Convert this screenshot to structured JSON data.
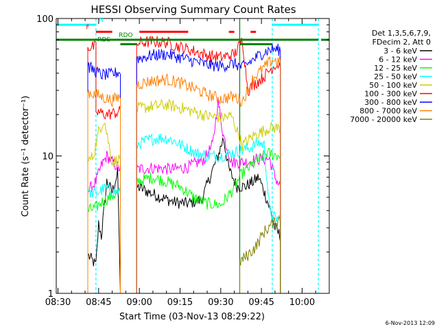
{
  "chart_data": {
    "type": "line",
    "title": "HESSI Observing Summary Count Rates",
    "xlabel": "Start Time (03-Nov-13 08:29:22)",
    "ylabel": "Count Rate (s⁻¹ detector⁻¹)",
    "yscale": "log",
    "ylim": [
      1,
      100
    ],
    "xlim": [
      "08:29:22",
      "10:10:00"
    ],
    "x_ticks": [
      "08:30",
      "08:45",
      "09:00",
      "09:15",
      "09:30",
      "09:45",
      "10:00"
    ],
    "y_ticks": [
      "1",
      "10",
      "100"
    ],
    "footer_date": "6-Nov-2013 12:09",
    "legend": {
      "placement": "right",
      "header": [
        "Det 1,3,5,6,7,9,",
        "FDecim 2, Att 0"
      ],
      "entries": [
        {
          "label": "3 - 6 keV",
          "color": "#000000"
        },
        {
          "label": "6 - 12 keV",
          "color": "#ff00ff"
        },
        {
          "label": "12 - 25 keV",
          "color": "#00ff00"
        },
        {
          "label": "25 - 50 keV",
          "color": "#00ffff"
        },
        {
          "label": "50 - 100 keV",
          "color": "#cccc00"
        },
        {
          "label": "100 - 300 keV",
          "color": "#ff0000"
        },
        {
          "label": "300 - 800 keV",
          "color": "#0000ff"
        },
        {
          "label": "800 - 7000 keV",
          "color": "#ff8000"
        },
        {
          "label": "7000 - 20000 keV",
          "color": "#808000"
        }
      ]
    },
    "series": [
      {
        "name": "3 - 6 keV",
        "color": "#000000",
        "points": [
          [
            "08:41",
            0
          ],
          [
            "08:41",
            1.9
          ],
          [
            "08:44",
            1.6
          ],
          [
            "08:45",
            3.2
          ],
          [
            "08:46",
            2.6
          ],
          [
            "08:48",
            6.5
          ],
          [
            "08:50",
            5.5
          ],
          [
            "08:52",
            7.5
          ],
          [
            "08:53",
            0
          ],
          [
            "08:59",
            0
          ],
          [
            "08:59",
            6
          ],
          [
            "09:03",
            5.5
          ],
          [
            "09:08",
            5
          ],
          [
            "09:13",
            4.6
          ],
          [
            "09:18",
            4.5
          ],
          [
            "09:23",
            4.8
          ],
          [
            "09:26",
            7
          ],
          [
            "09:29",
            10
          ],
          [
            "09:31",
            13.5
          ],
          [
            "09:33",
            8
          ],
          [
            "09:36",
            6
          ],
          [
            "09:39",
            6
          ],
          [
            "09:42",
            6.5
          ],
          [
            "09:44",
            7
          ],
          [
            "09:46",
            5.5
          ],
          [
            "09:48",
            4.2
          ],
          [
            "09:50",
            3
          ],
          [
            "09:52",
            2.6
          ],
          [
            "09:52",
            0
          ]
        ]
      },
      {
        "name": "6 - 12 keV",
        "color": "#ff00ff",
        "points": [
          [
            "08:41",
            0
          ],
          [
            "08:41",
            5.5
          ],
          [
            "08:44",
            6.5
          ],
          [
            "08:46",
            8.5
          ],
          [
            "08:48",
            10
          ],
          [
            "08:50",
            9
          ],
          [
            "08:53",
            8
          ],
          [
            "08:53",
            0
          ],
          [
            "08:59",
            0
          ],
          [
            "08:59",
            8
          ],
          [
            "09:05",
            8.2
          ],
          [
            "09:12",
            8
          ],
          [
            "09:18",
            8.3
          ],
          [
            "09:24",
            9.5
          ],
          [
            "09:27",
            12
          ],
          [
            "09:29",
            25
          ],
          [
            "09:31",
            14
          ],
          [
            "09:34",
            9
          ],
          [
            "09:39",
            9
          ],
          [
            "09:44",
            9.5
          ],
          [
            "09:48",
            9.5
          ],
          [
            "09:50",
            7
          ],
          [
            "09:52",
            6
          ],
          [
            "09:52",
            0
          ]
        ]
      },
      {
        "name": "12 - 25 keV",
        "color": "#00ff00",
        "points": [
          [
            "08:41",
            0
          ],
          [
            "08:41",
            4
          ],
          [
            "08:44",
            4.2
          ],
          [
            "08:46",
            4.6
          ],
          [
            "08:49",
            5
          ],
          [
            "08:53",
            5.5
          ],
          [
            "08:53",
            0
          ],
          [
            "08:59",
            0
          ],
          [
            "08:59",
            6.5
          ],
          [
            "09:05",
            7
          ],
          [
            "09:10",
            6.5
          ],
          [
            "09:15",
            6
          ],
          [
            "09:20",
            5
          ],
          [
            "09:25",
            4.5
          ],
          [
            "09:30",
            4.4
          ],
          [
            "09:34",
            5.5
          ],
          [
            "09:38",
            7.5
          ],
          [
            "09:43",
            9
          ],
          [
            "09:47",
            10.5
          ],
          [
            "09:52",
            10
          ],
          [
            "09:52",
            0
          ]
        ]
      },
      {
        "name": "25 - 50 keV",
        "color": "#00ffff",
        "points": [
          [
            "08:41",
            0
          ],
          [
            "08:41",
            5.5
          ],
          [
            "08:44",
            5.3
          ],
          [
            "08:47",
            5.8
          ],
          [
            "08:50",
            5.5
          ],
          [
            "08:53",
            5.5
          ],
          [
            "08:53",
            0
          ],
          [
            "08:59",
            0
          ],
          [
            "08:59",
            12
          ],
          [
            "09:03",
            13
          ],
          [
            "09:07",
            13.5
          ],
          [
            "09:10",
            13.5
          ],
          [
            "09:13",
            12.8
          ],
          [
            "09:17",
            11.5
          ],
          [
            "09:21",
            10.5
          ],
          [
            "09:25",
            10
          ],
          [
            "09:30",
            10
          ],
          [
            "09:34",
            10.5
          ],
          [
            "09:38",
            11
          ],
          [
            "09:41",
            11.5
          ],
          [
            "09:44",
            12.5
          ],
          [
            "09:46",
            12
          ],
          [
            "09:48",
            4
          ],
          [
            "09:50",
            3.5
          ],
          [
            "09:52",
            3.5
          ],
          [
            "09:52",
            0
          ]
        ]
      },
      {
        "name": "50 - 100 keV",
        "color": "#cccc00",
        "points": [
          [
            "08:41",
            0
          ],
          [
            "08:41",
            9
          ],
          [
            "08:43",
            10
          ],
          [
            "08:45",
            15
          ],
          [
            "08:47",
            18.5
          ],
          [
            "08:50",
            9
          ],
          [
            "08:53",
            9.5
          ],
          [
            "08:53",
            0
          ],
          [
            "08:59",
            0
          ],
          [
            "08:59",
            22
          ],
          [
            "09:05",
            23
          ],
          [
            "09:10",
            23.5
          ],
          [
            "09:15",
            22.5
          ],
          [
            "09:20",
            21
          ],
          [
            "09:25",
            19.5
          ],
          [
            "09:30",
            19
          ],
          [
            "09:34",
            19.5
          ],
          [
            "09:38",
            12
          ],
          [
            "09:42",
            14
          ],
          [
            "09:45",
            15
          ],
          [
            "09:48",
            16
          ],
          [
            "09:52",
            16
          ],
          [
            "09:52",
            0
          ]
        ]
      },
      {
        "name": "100 - 300 keV",
        "color": "#ff0000",
        "points": [
          [
            "08:41",
            0
          ],
          [
            "08:41",
            62
          ],
          [
            "08:44",
            62
          ],
          [
            "08:44",
            21
          ],
          [
            "08:48",
            20
          ],
          [
            "08:53",
            21
          ],
          [
            "08:53",
            0
          ],
          [
            "08:59",
            0
          ],
          [
            "08:59",
            66
          ],
          [
            "09:05",
            68
          ],
          [
            "09:10",
            67
          ],
          [
            "09:15",
            62
          ],
          [
            "09:20",
            58
          ],
          [
            "09:25",
            54
          ],
          [
            "09:30",
            52
          ],
          [
            "09:35",
            55
          ],
          [
            "09:38",
            70
          ],
          [
            "09:40",
            30
          ],
          [
            "09:43",
            34
          ],
          [
            "09:46",
            38
          ],
          [
            "09:48",
            42
          ],
          [
            "09:50",
            46
          ],
          [
            "09:52",
            46
          ],
          [
            "09:52",
            0
          ]
        ]
      },
      {
        "name": "300 - 800 keV",
        "color": "#0000ff",
        "points": [
          [
            "08:41",
            0
          ],
          [
            "08:41",
            45
          ],
          [
            "08:44",
            41
          ],
          [
            "08:46",
            39
          ],
          [
            "08:49",
            39
          ],
          [
            "08:53",
            41
          ],
          [
            "08:53",
            0
          ],
          [
            "08:59",
            0
          ],
          [
            "08:59",
            51
          ],
          [
            "09:05",
            54
          ],
          [
            "09:10",
            55
          ],
          [
            "09:15",
            52
          ],
          [
            "09:20",
            49
          ],
          [
            "09:25",
            46
          ],
          [
            "09:30",
            45
          ],
          [
            "09:35",
            47
          ],
          [
            "09:38",
            44
          ],
          [
            "09:43",
            52
          ],
          [
            "09:46",
            57
          ],
          [
            "09:49",
            60
          ],
          [
            "09:52",
            59
          ],
          [
            "09:52",
            0
          ]
        ]
      },
      {
        "name": "800 - 7000 keV",
        "color": "#ff8000",
        "points": [
          [
            "08:41",
            0
          ],
          [
            "08:41",
            29
          ],
          [
            "08:44",
            28
          ],
          [
            "08:47",
            26.5
          ],
          [
            "08:50",
            25.5
          ],
          [
            "08:53",
            27
          ],
          [
            "08:53",
            0
          ],
          [
            "08:59",
            0
          ],
          [
            "08:59",
            33
          ],
          [
            "09:04",
            35
          ],
          [
            "09:10",
            36
          ],
          [
            "09:15",
            34
          ],
          [
            "09:20",
            31
          ],
          [
            "09:25",
            28
          ],
          [
            "09:30",
            26
          ],
          [
            "09:35",
            27
          ],
          [
            "09:38",
            25
          ],
          [
            "09:42",
            37
          ],
          [
            "09:46",
            44
          ],
          [
            "09:49",
            50
          ],
          [
            "09:52",
            48
          ],
          [
            "09:52",
            0
          ]
        ]
      },
      {
        "name": "7000 - 20000 keV",
        "color": "#808000",
        "points": [
          [
            "09:37",
            0
          ],
          [
            "09:37",
            1.7
          ],
          [
            "09:40",
            1.9
          ],
          [
            "09:43",
            2.2
          ],
          [
            "09:46",
            2.8
          ],
          [
            "09:49",
            3.2
          ],
          [
            "09:52",
            3.5
          ],
          [
            "09:52",
            0
          ]
        ]
      }
    ],
    "flag_bars": [
      {
        "label": "N",
        "color": "#00ffff",
        "level": 90,
        "segments": [
          [
            "08:29:22",
            "08:44"
          ],
          [
            "09:49",
            "10:06"
          ]
        ],
        "label_at": "08:46"
      },
      {
        "label": "F",
        "color": "#ff0000",
        "level": 80,
        "segments": [
          [
            "08:44",
            "08:50"
          ],
          [
            "09:00",
            "09:18"
          ],
          [
            "09:33",
            "09:35"
          ],
          [
            "09:41",
            "09:43"
          ]
        ],
        "label_at": "08:41"
      },
      {
        "label": "RDO",
        "color": "#008000",
        "level": 70,
        "segments": [
          [
            "08:29:22",
            "09:37"
          ],
          [
            "09:37",
            "10:06"
          ],
          [
            "10:07",
            "10:10"
          ]
        ],
        "label_at": "08:55"
      },
      {
        "label": "RDS",
        "color": "#008000",
        "level": 65,
        "segments": [
          [
            "08:53",
            "08:59"
          ],
          [
            "09:37",
            "09:49"
          ]
        ],
        "label_at": "08:47"
      }
    ],
    "vlines": [
      {
        "t": "08:44",
        "color": "#00ffff",
        "style": "dashed"
      },
      {
        "t": "09:37",
        "color": "#008000",
        "style": "solid"
      },
      {
        "t": "09:49",
        "color": "#00ffff",
        "style": "dashed"
      },
      {
        "t": "10:06",
        "color": "#00ffff",
        "style": "dashed"
      }
    ]
  }
}
